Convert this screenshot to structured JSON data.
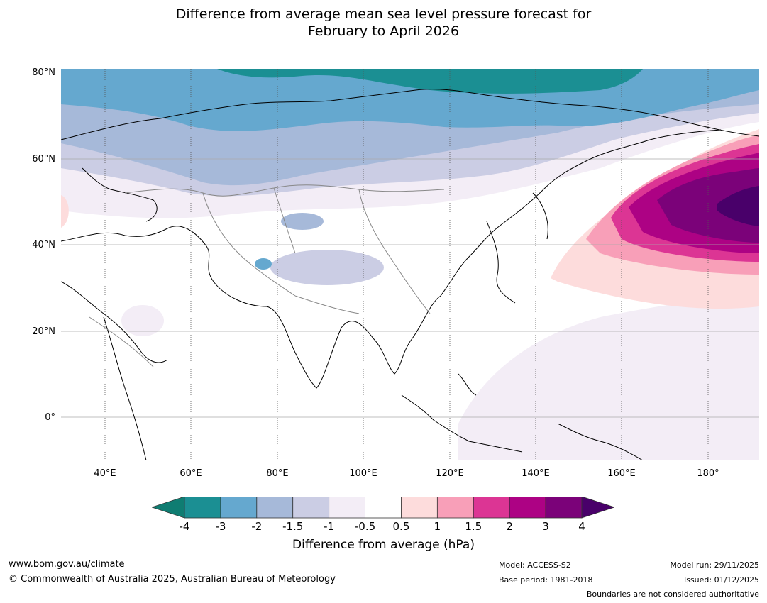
{
  "title": {
    "line1": "Difference from average mean sea level pressure forecast for",
    "line2": "February to April 2026"
  },
  "map": {
    "lat_labels": [
      "80°N",
      "60°N",
      "40°N",
      "20°N",
      "0°"
    ],
    "lon_labels": [
      "40°E",
      "60°E",
      "80°E",
      "100°E",
      "120°E",
      "140°E",
      "160°E",
      "180°"
    ],
    "colors": {
      "minus4": "#0f7d72",
      "minus3": "#1b8f93",
      "minus2": "#65a8cf",
      "minus15": "#a6b9d9",
      "minus1": "#cbcde4",
      "minus05": "#f3edf6",
      "zero": "#ffffff",
      "plus05": "#fddcdc",
      "plus1": "#f89fb8",
      "plus15": "#dc3594",
      "plus2": "#ad0284",
      "plus3": "#7b0279",
      "plus4": "#49006a"
    }
  },
  "colorbar": {
    "ticks": [
      "-4",
      "-3",
      "-2",
      "-1.5",
      "-1",
      "-0.5",
      "0.5",
      "1",
      "1.5",
      "2",
      "3",
      "4"
    ],
    "label": "Difference from average (hPa)",
    "colors": [
      "#0f7d72",
      "#1b8f93",
      "#65a8cf",
      "#a6b9d9",
      "#cbcde4",
      "#f3edf6",
      "#ffffff",
      "#fddcdc",
      "#f89fb8",
      "#dc3594",
      "#ad0284",
      "#7b0279",
      "#49006a"
    ]
  },
  "footer": {
    "website": "www.bom.gov.au/climate",
    "copyright": "© Commonwealth of Australia 2025, Australian Bureau of Meteorology",
    "model": "Model: ACCESS-S2",
    "base_period": "Base period: 1981-2018",
    "model_run": "Model run: 29/11/2025",
    "issued": "Issued: 01/12/2025",
    "disclaimer": "Boundaries are not considered authoritative"
  }
}
